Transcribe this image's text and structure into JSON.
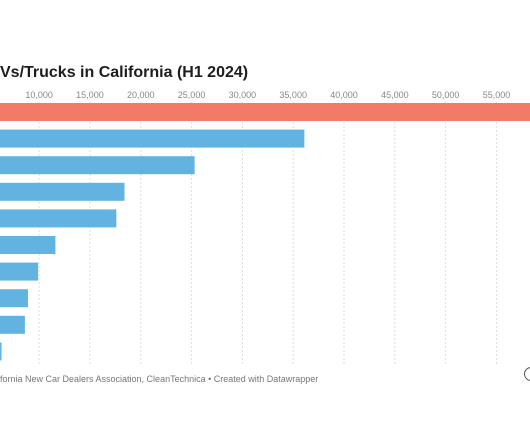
{
  "chart_data": {
    "type": "bar",
    "orientation": "horizontal",
    "title": "Vs/Trucks in California (H1 2024)",
    "x_ticks": [
      10000,
      15000,
      20000,
      25000,
      30000,
      35000,
      40000,
      45000,
      50000,
      55000
    ],
    "x_tick_labels": [
      "10,000",
      "15,000",
      "20,000",
      "25,000",
      "30,000",
      "35,000",
      "40,000",
      "45,000",
      "50,000",
      "55,000"
    ],
    "xlim": [
      6150,
      58300
    ],
    "grid": true,
    "values": [
      58300,
      36100,
      25300,
      18400,
      17600,
      11600,
      9900,
      8900,
      8600,
      6300
    ],
    "highlight_color": "#f37a66",
    "bar_color": "#63b3e0"
  },
  "footer": {
    "source": "fornia New Car Dealers Association, CleanTechnica • Created with Datawrapper"
  },
  "icons": {
    "info": "info-icon"
  }
}
